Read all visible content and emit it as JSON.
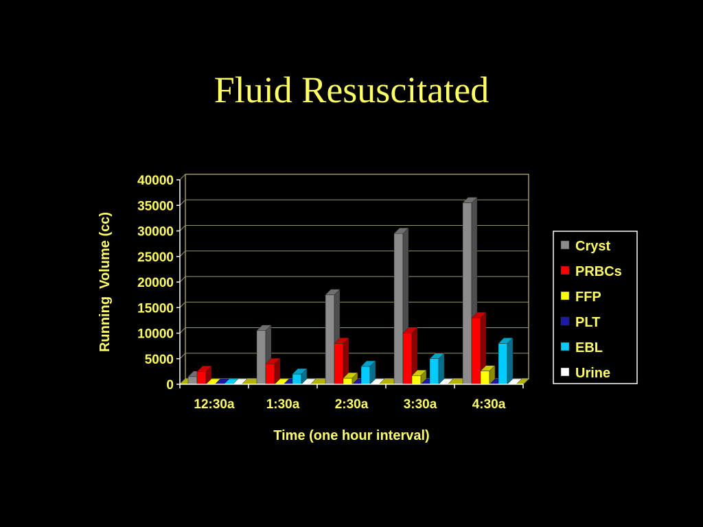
{
  "slide": {
    "title": "Fluid Resuscitated"
  },
  "colors": {
    "background": "#000000",
    "text": "#ffff66",
    "plot_border": "#999966"
  },
  "chart_data": {
    "type": "bar",
    "style": "3d-clustered",
    "title": "",
    "xlabel": "Time (one hour interval)",
    "ylabel": "Running  Volume (cc)",
    "categories": [
      "12:30a",
      "1:30a",
      "2:30a",
      "3:30a",
      "4:30a"
    ],
    "ylim": [
      0,
      40000
    ],
    "yticks": [
      0,
      5000,
      10000,
      15000,
      20000,
      25000,
      30000,
      35000,
      40000
    ],
    "grid": true,
    "legend_position": "right",
    "series": [
      {
        "name": "Cryst",
        "color": "#8c8c8c",
        "values": [
          1500,
          10500,
          17500,
          29500,
          35500
        ]
      },
      {
        "name": "PRBCs",
        "color": "#ff0000",
        "values": [
          2500,
          4000,
          8000,
          10000,
          13000
        ]
      },
      {
        "name": "FFP",
        "color": "#ffff00",
        "values": [
          0,
          0,
          1200,
          1700,
          2600
        ]
      },
      {
        "name": "PLT",
        "color": "#1a1aa6",
        "values": [
          0,
          0,
          0,
          0,
          0
        ]
      },
      {
        "name": "EBL",
        "color": "#00ccff",
        "values": [
          0,
          2000,
          3500,
          5000,
          8000
        ]
      },
      {
        "name": "Urine",
        "color": "#ffffff",
        "values": [
          0,
          0,
          0,
          0,
          0
        ]
      }
    ]
  }
}
